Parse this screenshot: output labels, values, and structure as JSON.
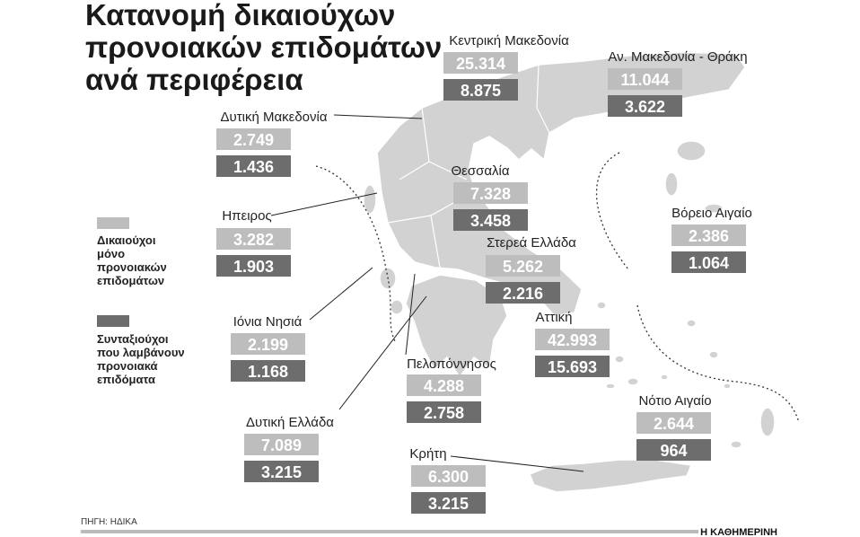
{
  "title_lines": [
    "Κατανομή δικαιούχων",
    "προνοιακών επιδομάτων",
    "ανά περιφέρεια"
  ],
  "regions": [
    {
      "name": "Κεντρική Μακεδονία",
      "beneficiaries_only": "25.314",
      "pensioners": "8.875"
    },
    {
      "name": "Αν. Μακεδονία - Θράκη",
      "beneficiaries_only": "11.044",
      "pensioners": "3.622"
    },
    {
      "name": "Δυτική Μακεδονία",
      "beneficiaries_only": "2.749",
      "pensioners": "1.436"
    },
    {
      "name": "Θεσσαλία",
      "beneficiaries_only": "7.328",
      "pensioners": "3.458"
    },
    {
      "name": "Ηπειρος",
      "beneficiaries_only": "3.282",
      "pensioners": "1.903"
    },
    {
      "name": "Βόρειο Αιγαίο",
      "beneficiaries_only": "2.386",
      "pensioners": "1.064"
    },
    {
      "name": "Στερεά Ελλάδα",
      "beneficiaries_only": "5.262",
      "pensioners": "2.216"
    },
    {
      "name": "Ιόνια Νησιά",
      "beneficiaries_only": "2.199",
      "pensioners": "1.168"
    },
    {
      "name": "Αττική",
      "beneficiaries_only": "42.993",
      "pensioners": "15.693"
    },
    {
      "name": "Πελοπόννησος",
      "beneficiaries_only": "4.288",
      "pensioners": "2.758"
    },
    {
      "name": "Δυτική Ελλάδα",
      "beneficiaries_only": "7.089",
      "pensioners": "3.215"
    },
    {
      "name": "Νότιο Αιγαίο",
      "beneficiaries_only": "2.644",
      "pensioners": "964"
    },
    {
      "name": "Κρήτη",
      "beneficiaries_only": "6.300",
      "pensioners": "3.215"
    }
  ],
  "legend": [
    {
      "label_lines": [
        "Δικαιούχοι",
        "μόνο",
        "προνοιακών",
        "επιδομάτων"
      ]
    },
    {
      "label_lines": [
        "Συνταξιούχοι",
        "που λαμβάνουν",
        "προνοιακά",
        "επιδόματα"
      ]
    }
  ],
  "source": "ΠΗΓΗ: ΗΔΙΚΑ",
  "brand": "Η ΚΑΘΗΜΕΡΙΝΗ"
}
